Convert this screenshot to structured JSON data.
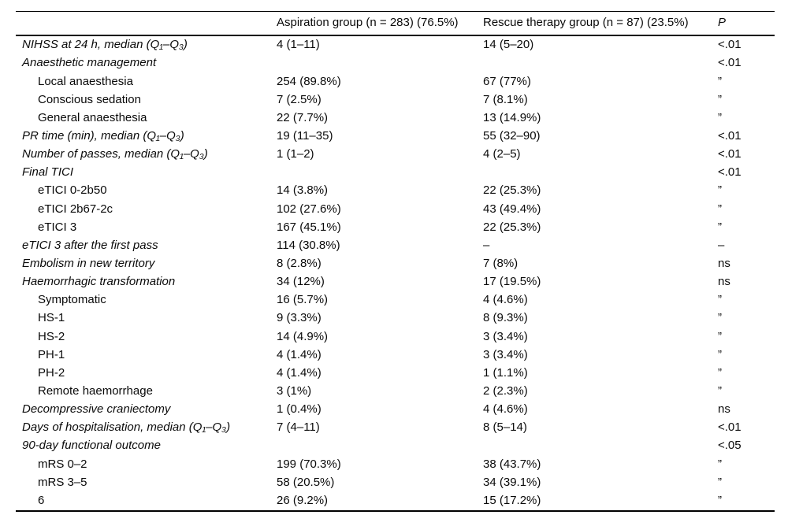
{
  "colors": {
    "background": "#ffffff",
    "text": "#0a0a0a",
    "rule": "#000000"
  },
  "table": {
    "columns": [
      "",
      "Aspiration group (n = 283) (76.5%)",
      "Rescue therapy group (n = 87) (23.5%)",
      "P"
    ],
    "rows": [
      {
        "label": "NIHSS at 24 h, median (Q₁–Q₃)",
        "style": "italic",
        "aspiration": "4 (1–11)",
        "rescue": "14 (5–20)",
        "p": "<.01"
      },
      {
        "label": "Anaesthetic management",
        "style": "italic",
        "aspiration": "",
        "rescue": "",
        "p": "<.01"
      },
      {
        "label": "Local anaesthesia",
        "style": "indent",
        "aspiration": "254 (89.8%)",
        "rescue": "67 (77%)",
        "p": "”"
      },
      {
        "label": "Conscious sedation",
        "style": "indent",
        "aspiration": "7 (2.5%)",
        "rescue": "7 (8.1%)",
        "p": "”"
      },
      {
        "label": "General anaesthesia",
        "style": "indent",
        "aspiration": "22 (7.7%)",
        "rescue": "13 (14.9%)",
        "p": "”"
      },
      {
        "label": "PR time (min), median (Q₁–Q₃)",
        "style": "italic",
        "aspiration": "19 (11–35)",
        "rescue": "55 (32–90)",
        "p": "<.01"
      },
      {
        "label": "Number of passes, median (Q₁–Q₃)",
        "style": "italic",
        "aspiration": "1 (1–2)",
        "rescue": "4 (2–5)",
        "p": "<.01"
      },
      {
        "label": "Final TICI",
        "style": "italic",
        "aspiration": "",
        "rescue": "",
        "p": "<.01"
      },
      {
        "label": "eTICI 0-2b50",
        "style": "indent",
        "aspiration": "14 (3.8%)",
        "rescue": "22 (25.3%)",
        "p": "”"
      },
      {
        "label": "eTICI 2b67-2c",
        "style": "indent",
        "aspiration": "102 (27.6%)",
        "rescue": "43 (49.4%)",
        "p": "”"
      },
      {
        "label": "eTICI 3",
        "style": "indent",
        "aspiration": "167 (45.1%)",
        "rescue": "22 (25.3%)",
        "p": "”"
      },
      {
        "label": "eTICI 3 after the first pass",
        "style": "italic",
        "aspiration": "114 (30.8%)",
        "rescue": "–",
        "p": "–"
      },
      {
        "label": "Embolism in new territory",
        "style": "italic",
        "aspiration": "8 (2.8%)",
        "rescue": "7 (8%)",
        "p": "ns"
      },
      {
        "label": "Haemorrhagic transformation",
        "style": "italic",
        "aspiration": "34 (12%)",
        "rescue": "17 (19.5%)",
        "p": "ns"
      },
      {
        "label": "Symptomatic",
        "style": "indent",
        "aspiration": "16 (5.7%)",
        "rescue": "4 (4.6%)",
        "p": "”"
      },
      {
        "label": "HS-1",
        "style": "indent",
        "aspiration": "9 (3.3%)",
        "rescue": "8 (9.3%)",
        "p": "”"
      },
      {
        "label": "HS-2",
        "style": "indent",
        "aspiration": "14 (4.9%)",
        "rescue": "3 (3.4%)",
        "p": "”"
      },
      {
        "label": "PH-1",
        "style": "indent",
        "aspiration": "4 (1.4%)",
        "rescue": "3 (3.4%)",
        "p": "”"
      },
      {
        "label": "PH-2",
        "style": "indent",
        "aspiration": "4 (1.4%)",
        "rescue": "1 (1.1%)",
        "p": "”"
      },
      {
        "label": "Remote haemorrhage",
        "style": "indent",
        "aspiration": "3 (1%)",
        "rescue": "2 (2.3%)",
        "p": "”"
      },
      {
        "label": "Decompressive craniectomy",
        "style": "italic",
        "aspiration": "1 (0.4%)",
        "rescue": "4 (4.6%)",
        "p": "ns"
      },
      {
        "label": "Days of hospitalisation, median (Q₁–Q₃)",
        "style": "italic",
        "aspiration": "7 (4–11)",
        "rescue": "8 (5–14)",
        "p": "<.01"
      },
      {
        "label": "90-day functional outcome",
        "style": "italic",
        "aspiration": "",
        "rescue": "",
        "p": "<.05"
      },
      {
        "label": "mRS 0–2",
        "style": "indent",
        "aspiration": "199 (70.3%)",
        "rescue": "38 (43.7%)",
        "p": "”"
      },
      {
        "label": "mRS 3–5",
        "style": "indent",
        "aspiration": "58 (20.5%)",
        "rescue": "34 (39.1%)",
        "p": "”"
      },
      {
        "label": "6",
        "style": "indent",
        "aspiration": "26 (9.2%)",
        "rescue": "15 (17.2%)",
        "p": "”"
      }
    ]
  }
}
